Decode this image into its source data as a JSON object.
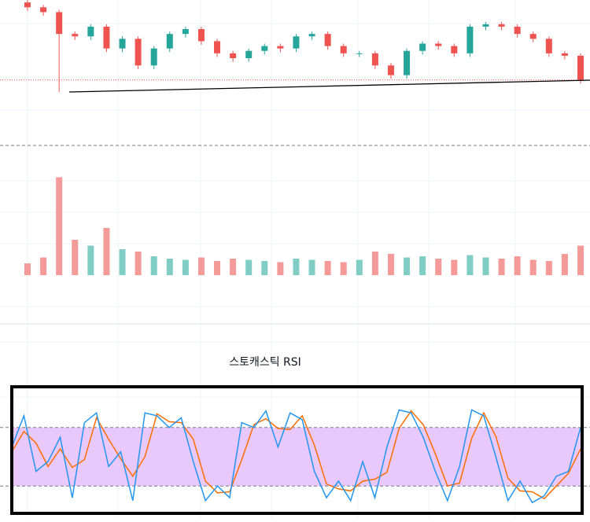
{
  "chart_data": [
    {
      "type": "candlestick",
      "up_color": "#26a69a",
      "down_color": "#ef5350",
      "ylim": [
        40,
        100
      ],
      "open": [
        99,
        97,
        95,
        86,
        85,
        89,
        80,
        84,
        73,
        80,
        86,
        88,
        83,
        78,
        76,
        79,
        81,
        80,
        85,
        86,
        81,
        78,
        78,
        73,
        69,
        79,
        82,
        81,
        78,
        89,
        90,
        89,
        86,
        84,
        78,
        77
      ],
      "high": [
        100,
        98,
        96,
        87,
        90,
        90,
        85,
        85,
        81,
        87,
        89,
        89,
        84,
        79,
        80,
        82,
        82,
        86,
        87,
        87,
        82,
        79,
        79,
        74,
        80,
        83,
        83,
        82,
        90,
        91,
        91,
        90,
        87,
        85,
        79,
        78
      ],
      "low": [
        95.5,
        93.5,
        62,
        83.5,
        83.5,
        78.5,
        78.5,
        71.5,
        71.5,
        78.5,
        84.5,
        81.5,
        76.5,
        74.5,
        74.5,
        77.5,
        78.5,
        78.5,
        83.5,
        79.5,
        76.5,
        76.5,
        71.5,
        67.5,
        67.5,
        77.5,
        79.5,
        76.5,
        76.5,
        87.5,
        87.5,
        84.5,
        82.5,
        76.5,
        75.5,
        65.5
      ],
      "close": [
        97,
        95,
        86,
        85,
        89,
        80,
        84,
        73,
        80,
        86,
        88,
        83,
        78,
        76,
        79,
        81,
        80,
        85,
        86,
        81,
        78,
        78,
        73,
        69,
        79,
        82,
        81,
        78,
        89,
        90,
        89,
        86,
        84,
        78,
        77,
        67
      ]
    },
    {
      "type": "bar",
      "ylim": [
        0,
        100
      ],
      "up_color": "#7fcdc4",
      "down_color": "#f49a98",
      "values": [
        10,
        15,
        83,
        30,
        25,
        40,
        22,
        20,
        16,
        14,
        13,
        15,
        12,
        14,
        13,
        12,
        11,
        14,
        13,
        12,
        11,
        13,
        20,
        18,
        15,
        16,
        14,
        13,
        17,
        15,
        14,
        16,
        13,
        12,
        18,
        25
      ]
    },
    {
      "type": "line",
      "title": "스토캐스틱 RSI",
      "ylim": [
        0,
        100
      ],
      "bands": [
        20,
        80
      ],
      "band_color": "#e9c8fb",
      "series": [
        {
          "color": "#2196f3",
          "values": [
            60,
            92,
            35,
            45,
            70,
            8,
            85,
            95,
            40,
            55,
            5,
            95,
            92,
            80,
            90,
            45,
            5,
            20,
            8,
            85,
            80,
            97,
            60,
            95,
            88,
            35,
            8,
            25,
            5,
            45,
            8,
            60,
            98,
            95,
            70,
            35,
            5,
            40,
            98,
            92,
            50,
            5,
            25,
            3,
            10,
            30,
            35,
            80
          ]
        },
        {
          "color": "#ff6d00",
          "values": [
            55,
            76,
            64,
            40,
            58,
            39,
            47,
            90,
            68,
            48,
            30,
            50,
            94,
            86,
            85,
            68,
            25,
            13,
            14,
            47,
            83,
            89,
            79,
            78,
            92,
            62,
            22,
            17,
            15,
            25,
            27,
            34,
            79,
            97,
            83,
            53,
            20,
            23,
            69,
            95,
            71,
            28,
            15,
            14,
            7,
            20,
            33,
            58
          ]
        }
      ]
    }
  ]
}
